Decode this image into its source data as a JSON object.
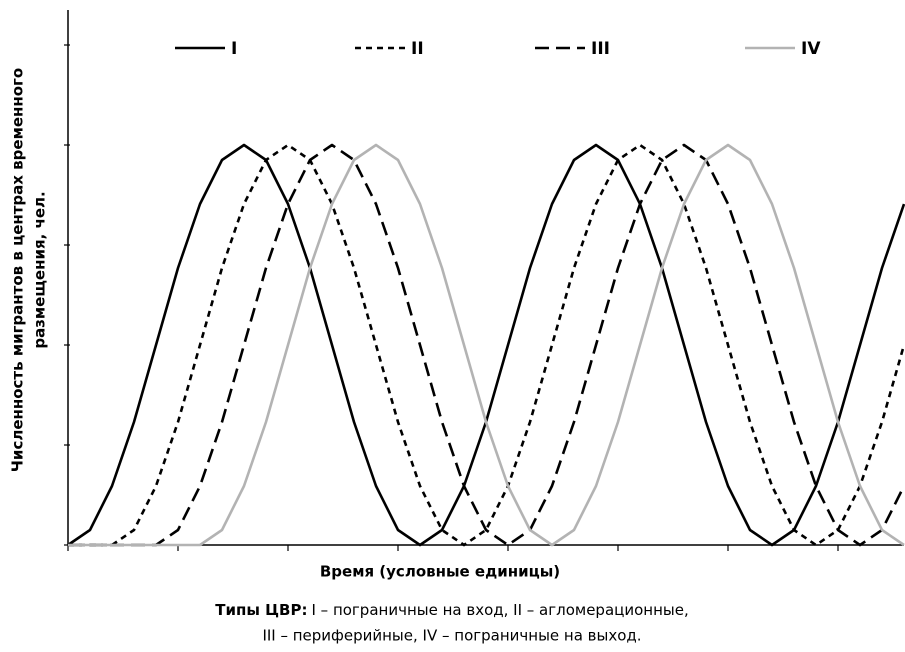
{
  "chart_data": {
    "type": "line",
    "xlabel": "Время (условные единицы)",
    "ylabel": [
      "Численность мигрантов в центрах временного",
      "размещения, чел."
    ],
    "caption": {
      "label": "Типы ЦВР:",
      "lines": [
        "I – пограничные на вход, II – агломерационные,",
        "III – периферийные, IV – пограничные на выход."
      ]
    },
    "xlim": [
      0,
      7.6
    ],
    "xticks": [
      0,
      1,
      2,
      3,
      4,
      5,
      6,
      7
    ],
    "ylim": [
      0,
      5.35
    ],
    "yticks": [
      0,
      1,
      2,
      3,
      4,
      5
    ],
    "legend": "top",
    "x": [
      0,
      0.2,
      0.4,
      0.6,
      0.8,
      1,
      1.2,
      1.4,
      1.6,
      1.8,
      2,
      2.2,
      2.4,
      2.6,
      2.8,
      3,
      3.2,
      3.4,
      3.6,
      3.8,
      4,
      4.2,
      4.4,
      4.6,
      4.8,
      5,
      5.2,
      5.4,
      5.6,
      5.8,
      6,
      6.2,
      6.4,
      6.6,
      6.8,
      7,
      7.2,
      7.4,
      7.6
    ],
    "series": [
      {
        "name": "I",
        "color": "#000000",
        "dash": "solid",
        "values": [
          0,
          0.15,
          0.59,
          1.23,
          2,
          2.77,
          3.41,
          3.85,
          4,
          3.85,
          3.41,
          2.77,
          2,
          1.23,
          0.59,
          0.15,
          0,
          0.15,
          0.59,
          1.23,
          2,
          2.77,
          3.41,
          3.85,
          4,
          3.85,
          3.41,
          2.77,
          2,
          1.23,
          0.59,
          0.15,
          0,
          0.15,
          0.59,
          1.23,
          2,
          2.77,
          3.41
        ]
      },
      {
        "name": "II",
        "color": "#000000",
        "dash": "short",
        "values": [
          0,
          0,
          0,
          0.15,
          0.59,
          1.23,
          2,
          2.77,
          3.41,
          3.85,
          4,
          3.85,
          3.41,
          2.77,
          2,
          1.23,
          0.59,
          0.15,
          0,
          0.15,
          0.59,
          1.23,
          2,
          2.77,
          3.41,
          3.85,
          4,
          3.85,
          3.41,
          2.77,
          2,
          1.23,
          0.59,
          0.15,
          0,
          0.15,
          0.59,
          1.23,
          2
        ]
      },
      {
        "name": "III",
        "color": "#000000",
        "dash": "long",
        "values": [
          0,
          0,
          0,
          0,
          0,
          0.15,
          0.59,
          1.23,
          2,
          2.77,
          3.41,
          3.85,
          4,
          3.85,
          3.41,
          2.77,
          2,
          1.23,
          0.59,
          0.15,
          0,
          0.15,
          0.59,
          1.23,
          2,
          2.77,
          3.41,
          3.85,
          4,
          3.85,
          3.41,
          2.77,
          2,
          1.23,
          0.59,
          0.15,
          0,
          0.15,
          0.59
        ]
      },
      {
        "name": "IV",
        "color": "#b3b3b3",
        "dash": "solid",
        "values": [
          0,
          0,
          0,
          0,
          0,
          0,
          0,
          0.15,
          0.59,
          1.23,
          2,
          2.77,
          3.41,
          3.85,
          4,
          3.85,
          3.41,
          2.77,
          2,
          1.23,
          0.59,
          0.15,
          0,
          0.15,
          0.59,
          1.23,
          2,
          2.77,
          3.41,
          3.85,
          4,
          3.85,
          3.41,
          2.77,
          2,
          1.23,
          0.59,
          0.15,
          0
        ]
      }
    ]
  }
}
